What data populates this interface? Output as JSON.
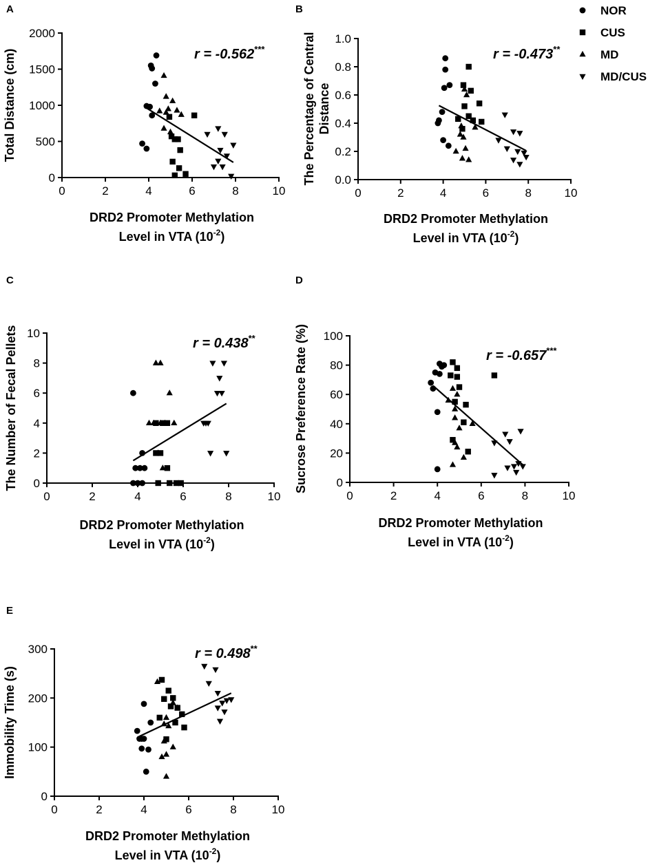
{
  "legend": {
    "entries": [
      {
        "group": "NOR",
        "label": "NOR"
      },
      {
        "group": "CUS",
        "label": "CUS"
      },
      {
        "group": "MD",
        "label": "MD"
      },
      {
        "group": "MD/CUS",
        "label": "MD/CUS"
      }
    ]
  },
  "chart_data": [
    {
      "panel": "A",
      "type": "scatter",
      "xlabel": [
        "DRD2 Promoter Methylation",
        "Level in VTA (10",
        "-2",
        ")"
      ],
      "ylabel": [
        "Total Distance (cm)"
      ],
      "xlim": [
        0,
        10
      ],
      "ylim": [
        0,
        2000
      ],
      "xticks": [
        0,
        2,
        4,
        6,
        8,
        10
      ],
      "yticks": [
        0,
        500,
        1000,
        1500,
        2000
      ],
      "r_text": "r = -0.562",
      "r_sig": "***",
      "fit_line": [
        [
          3.8,
          980
        ],
        [
          7.9,
          210
        ]
      ],
      "series": [
        {
          "name": "NOR",
          "points": [
            [
              4.35,
              1690
            ],
            [
              4.1,
              1550
            ],
            [
              4.15,
              1510
            ],
            [
              4.3,
              1300
            ],
            [
              3.9,
              990
            ],
            [
              4.05,
              980
            ],
            [
              4.15,
              860
            ],
            [
              3.7,
              470
            ],
            [
              3.9,
              400
            ]
          ]
        },
        {
          "name": "CUS",
          "points": [
            [
              4.95,
              840
            ],
            [
              5.05,
              570
            ],
            [
              5.2,
              530
            ],
            [
              5.45,
              380
            ],
            [
              5.35,
              530
            ],
            [
              5.1,
              220
            ],
            [
              5.4,
              130
            ],
            [
              5.2,
              30
            ],
            [
              5.7,
              50
            ],
            [
              6.1,
              860
            ]
          ]
        },
        {
          "name": "MD",
          "points": [
            [
              4.7,
              1410
            ],
            [
              4.8,
              1120
            ],
            [
              5.1,
              1060
            ],
            [
              4.9,
              950
            ],
            [
              5.3,
              930
            ],
            [
              4.5,
              920
            ],
            [
              4.7,
              680
            ],
            [
              5.0,
              630
            ],
            [
              4.8,
              900
            ],
            [
              5.5,
              870
            ]
          ]
        },
        {
          "name": "MD/CUS",
          "points": [
            [
              6.7,
              600
            ],
            [
              7.2,
              680
            ],
            [
              7.5,
              600
            ],
            [
              7.9,
              450
            ],
            [
              7.3,
              380
            ],
            [
              7.6,
              300
            ],
            [
              7.2,
              230
            ],
            [
              7.0,
              150
            ],
            [
              7.4,
              150
            ],
            [
              7.8,
              20
            ]
          ]
        }
      ]
    },
    {
      "panel": "B",
      "type": "scatter",
      "xlabel": [
        "DRD2 Promoter Methylation",
        "Level in VTA (10",
        "-2",
        ")"
      ],
      "ylabel": [
        "The Percentage of Central",
        "Distance"
      ],
      "xlim": [
        0,
        10
      ],
      "ylim": [
        0,
        1.0
      ],
      "xticks": [
        0,
        2,
        4,
        6,
        8,
        10
      ],
      "yticks": [
        0.0,
        0.2,
        0.4,
        0.6,
        0.8,
        1.0
      ],
      "r_text": "r = -0.473",
      "r_sig": "**",
      "fit_line": [
        [
          3.8,
          0.525
        ],
        [
          7.9,
          0.205
        ]
      ],
      "series": [
        {
          "name": "NOR",
          "points": [
            [
              4.1,
              0.86
            ],
            [
              4.1,
              0.78
            ],
            [
              4.3,
              0.67
            ],
            [
              4.05,
              0.65
            ],
            [
              3.95,
              0.48
            ],
            [
              3.8,
              0.42
            ],
            [
              3.75,
              0.4
            ],
            [
              4.0,
              0.28
            ],
            [
              4.25,
              0.24
            ]
          ]
        },
        {
          "name": "CUS",
          "points": [
            [
              5.2,
              0.8
            ],
            [
              4.95,
              0.67
            ],
            [
              5.3,
              0.63
            ],
            [
              5.0,
              0.52
            ],
            [
              5.7,
              0.54
            ],
            [
              5.2,
              0.45
            ],
            [
              4.7,
              0.43
            ],
            [
              4.9,
              0.36
            ],
            [
              5.4,
              0.42
            ],
            [
              5.8,
              0.41
            ]
          ]
        },
        {
          "name": "MD",
          "points": [
            [
              5.0,
              0.64
            ],
            [
              4.85,
              0.38
            ],
            [
              4.95,
              0.3
            ],
            [
              5.1,
              0.6
            ],
            [
              5.5,
              0.37
            ],
            [
              4.6,
              0.2
            ],
            [
              4.9,
              0.15
            ],
            [
              5.05,
              0.22
            ],
            [
              5.2,
              0.14
            ],
            [
              4.8,
              0.32
            ]
          ]
        },
        {
          "name": "MD/CUS",
          "points": [
            [
              6.9,
              0.46
            ],
            [
              7.3,
              0.34
            ],
            [
              7.6,
              0.33
            ],
            [
              6.6,
              0.28
            ],
            [
              7.0,
              0.22
            ],
            [
              7.5,
              0.2
            ],
            [
              7.8,
              0.19
            ],
            [
              7.9,
              0.16
            ],
            [
              7.3,
              0.14
            ],
            [
              7.6,
              0.11
            ]
          ]
        }
      ]
    },
    {
      "panel": "C",
      "type": "scatter",
      "xlabel": [
        "DRD2 Promoter Methylation",
        "Level in VTA (10",
        "-2",
        ")"
      ],
      "ylabel": [
        "The Number of Fecal Pellets"
      ],
      "xlim": [
        0,
        10
      ],
      "ylim": [
        0,
        10
      ],
      "xticks": [
        0,
        2,
        4,
        6,
        8,
        10
      ],
      "yticks": [
        0,
        2,
        4,
        6,
        8,
        10
      ],
      "r_text": "r = 0.438",
      "r_sig": "**",
      "fit_line": [
        [
          3.8,
          1.5
        ],
        [
          7.9,
          5.3
        ]
      ],
      "series": [
        {
          "name": "NOR",
          "points": [
            [
              3.8,
              6.0
            ],
            [
              4.2,
              2.0
            ],
            [
              3.9,
              1.0
            ],
            [
              4.1,
              1.0
            ],
            [
              4.3,
              1.0
            ],
            [
              3.8,
              0.0
            ],
            [
              4.0,
              0.0
            ],
            [
              4.2,
              0.0
            ]
          ]
        },
        {
          "name": "CUS",
          "points": [
            [
              4.8,
              4.0
            ],
            [
              5.1,
              4.0
            ],
            [
              5.3,
              4.0
            ],
            [
              4.8,
              2.0
            ],
            [
              5.0,
              2.0
            ],
            [
              5.3,
              1.0
            ],
            [
              5.4,
              0.0
            ],
            [
              5.7,
              0.0
            ],
            [
              5.9,
              0.0
            ],
            [
              4.9,
              0.0
            ]
          ]
        },
        {
          "name": "MD",
          "points": [
            [
              4.8,
              8.0
            ],
            [
              5.0,
              8.0
            ],
            [
              5.4,
              6.0
            ],
            [
              4.5,
              4.0
            ],
            [
              4.7,
              4.0
            ],
            [
              5.0,
              4.0
            ],
            [
              5.6,
              4.0
            ],
            [
              5.1,
              1.0
            ],
            [
              4.9,
              2.0
            ],
            [
              5.2,
              4.0
            ]
          ]
        },
        {
          "name": "MD/CUS",
          "points": [
            [
              7.3,
              8.0
            ],
            [
              7.8,
              8.0
            ],
            [
              7.6,
              7.0
            ],
            [
              7.5,
              6.0
            ],
            [
              7.7,
              6.0
            ],
            [
              6.9,
              4.0
            ],
            [
              7.1,
              4.0
            ],
            [
              7.2,
              2.0
            ],
            [
              7.9,
              2.0
            ],
            [
              7.0,
              4.0
            ]
          ]
        }
      ]
    },
    {
      "panel": "D",
      "type": "scatter",
      "xlabel": [
        "DRD2 Promoter Methylation",
        "Level in VTA (10",
        "-2",
        ")"
      ],
      "ylabel": [
        "Sucrose Preference Rate (%)"
      ],
      "xlim": [
        0,
        10
      ],
      "ylim": [
        0,
        100
      ],
      "xticks": [
        0,
        2,
        4,
        6,
        8,
        10
      ],
      "yticks": [
        0,
        20,
        40,
        60,
        80,
        100
      ],
      "r_text": "r = -0.657",
      "r_sig": "***",
      "fit_line": [
        [
          3.8,
          66
        ],
        [
          7.9,
          12
        ]
      ],
      "series": [
        {
          "name": "NOR",
          "points": [
            [
              4.1,
              81
            ],
            [
              4.3,
              80
            ],
            [
              4.2,
              79
            ],
            [
              3.9,
              75
            ],
            [
              4.1,
              74
            ],
            [
              3.7,
              68
            ],
            [
              3.8,
              64
            ],
            [
              4.0,
              48
            ],
            [
              4.0,
              9
            ]
          ]
        },
        {
          "name": "CUS",
          "points": [
            [
              4.7,
              82
            ],
            [
              4.9,
              78
            ],
            [
              4.6,
              73
            ],
            [
              4.9,
              72
            ],
            [
              5.0,
              65
            ],
            [
              4.8,
              55
            ],
            [
              5.3,
              53
            ],
            [
              5.2,
              41
            ],
            [
              4.7,
              29
            ],
            [
              5.4,
              21
            ],
            [
              6.6,
              73
            ]
          ]
        },
        {
          "name": "MD",
          "points": [
            [
              4.7,
              64
            ],
            [
              4.9,
              60
            ],
            [
              4.8,
              50
            ],
            [
              4.5,
              56
            ],
            [
              4.8,
              44
            ],
            [
              5.0,
              37
            ],
            [
              5.6,
              40
            ],
            [
              4.8,
              27
            ],
            [
              4.9,
              24
            ],
            [
              5.2,
              17
            ],
            [
              4.7,
              12
            ]
          ]
        },
        {
          "name": "MD/CUS",
          "points": [
            [
              7.1,
              33
            ],
            [
              7.8,
              35
            ],
            [
              7.3,
              28
            ],
            [
              6.6,
              27
            ],
            [
              7.7,
              13
            ],
            [
              7.5,
              11
            ],
            [
              7.2,
              10
            ],
            [
              7.6,
              7
            ],
            [
              7.9,
              11
            ],
            [
              6.6,
              5
            ]
          ]
        }
      ]
    },
    {
      "panel": "E",
      "type": "scatter",
      "xlabel": [
        "DRD2 Promoter Methylation",
        "Level in VTA (10",
        "-2",
        ")"
      ],
      "ylabel": [
        "Immobility Time (s)"
      ],
      "xlim": [
        0,
        10
      ],
      "ylim": [
        0,
        300
      ],
      "xticks": [
        0,
        2,
        4,
        6,
        8,
        10
      ],
      "yticks": [
        0,
        100,
        200,
        300
      ],
      "r_text": "r = 0.498",
      "r_sig": "**",
      "fit_line": [
        [
          3.8,
          122
        ],
        [
          7.9,
          210
        ]
      ],
      "series": [
        {
          "name": "NOR",
          "points": [
            [
              4.0,
              188
            ],
            [
              4.3,
              150
            ],
            [
              3.7,
              133
            ],
            [
              3.8,
              117
            ],
            [
              4.0,
              117
            ],
            [
              3.9,
              97
            ],
            [
              4.2,
              95
            ],
            [
              4.1,
              50
            ],
            [
              3.9,
              117
            ]
          ]
        },
        {
          "name": "CUS",
          "points": [
            [
              4.8,
              237
            ],
            [
              5.1,
              215
            ],
            [
              4.9,
              198
            ],
            [
              5.3,
              200
            ],
            [
              5.2,
              183
            ],
            [
              5.5,
              180
            ],
            [
              5.7,
              167
            ],
            [
              5.8,
              140
            ],
            [
              4.7,
              160
            ],
            [
              5.4,
              150
            ],
            [
              5.0,
              116
            ]
          ]
        },
        {
          "name": "MD",
          "points": [
            [
              4.6,
              233
            ],
            [
              5.3,
              190
            ],
            [
              5.5,
              180
            ],
            [
              5.0,
              160
            ],
            [
              5.1,
              143
            ],
            [
              4.9,
              112
            ],
            [
              5.3,
              100
            ],
            [
              4.8,
              80
            ],
            [
              5.0,
              85
            ],
            [
              5.0,
              40
            ],
            [
              4.9,
              147
            ]
          ]
        },
        {
          "name": "MD/CUS",
          "points": [
            [
              6.7,
              265
            ],
            [
              7.2,
              258
            ],
            [
              6.9,
              230
            ],
            [
              7.3,
              210
            ],
            [
              7.9,
              197
            ],
            [
              7.7,
              195
            ],
            [
              7.5,
              190
            ],
            [
              7.3,
              180
            ],
            [
              7.6,
              172
            ],
            [
              7.4,
              153
            ]
          ]
        }
      ]
    }
  ]
}
